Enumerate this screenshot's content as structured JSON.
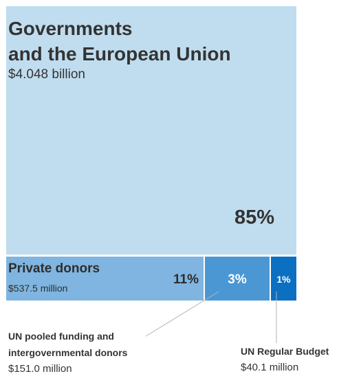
{
  "chart_data": {
    "type": "treemap",
    "segments": [
      {
        "name_lines": [
          "Governments",
          "and the European Union"
        ],
        "amount": "$4.048 billion",
        "value_usd_millions": 4048.0,
        "percent": 85,
        "percent_label": "85%",
        "color": "#c0ddef"
      },
      {
        "name": "Private donors",
        "amount": "$537.5 million",
        "value_usd_millions": 537.5,
        "percent": 11,
        "percent_label": "11%",
        "color": "#7fb5e0"
      },
      {
        "name_lines": [
          "UN pooled funding and",
          "intergovernmental donors"
        ],
        "amount": "$151.0 million",
        "value_usd_millions": 151.0,
        "percent": 3,
        "percent_label": "3%",
        "color": "#4a97d4"
      },
      {
        "name": "UN Regular Budget",
        "amount": "$40.1 million",
        "value_usd_millions": 40.1,
        "percent": 1,
        "percent_label": "1%",
        "color": "#0b6fc2"
      }
    ]
  }
}
